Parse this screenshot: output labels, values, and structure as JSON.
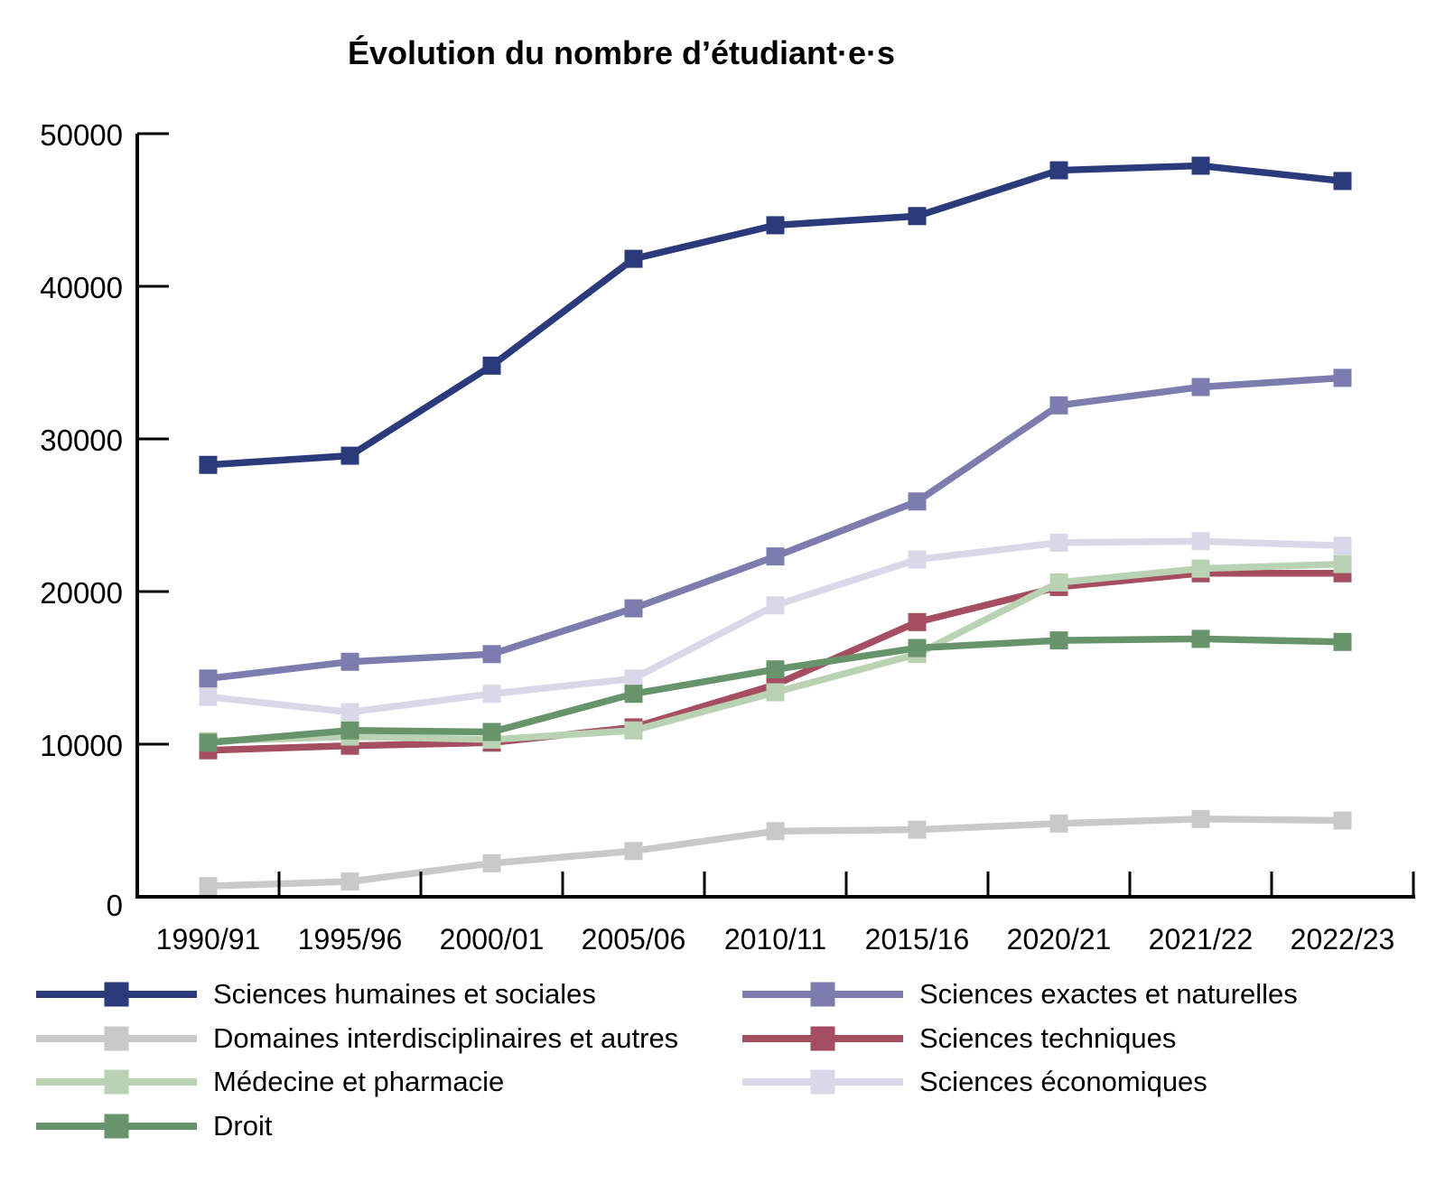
{
  "chart_data": {
    "type": "line",
    "title": "Évolution du nombre d’étudiant·e·s",
    "xlabel": "",
    "ylabel": "",
    "categories": [
      "1990/91",
      "1995/96",
      "2000/01",
      "2005/06",
      "2010/11",
      "2015/16",
      "2020/21",
      "2021/22",
      "2022/23"
    ],
    "ylim": [
      0,
      50000
    ],
    "yticks": [
      0,
      10000,
      20000,
      30000,
      40000,
      50000
    ],
    "grid": false,
    "marker": "square",
    "legend_position": "bottom",
    "axis_color": "#000000",
    "series": [
      {
        "name": "Sciences humaines et sociales",
        "color": "#2A3A7B",
        "z": 7,
        "values": [
          28300,
          28900,
          34800,
          41800,
          44000,
          44600,
          47600,
          47900,
          46900
        ]
      },
      {
        "name": "Sciences exactes et naturelles",
        "color": "#7C7CAE",
        "z": 6,
        "values": [
          14300,
          15400,
          15900,
          18900,
          22300,
          25900,
          32200,
          33400,
          34000
        ]
      },
      {
        "name": "Domaines interdisciplinaires et autres",
        "color": "#C9C9C9",
        "z": 2,
        "values": [
          700,
          1000,
          2200,
          3000,
          4300,
          4400,
          4800,
          5100,
          5000
        ]
      },
      {
        "name": "Sciences techniques",
        "color": "#A54D61",
        "z": 3,
        "values": [
          9600,
          9900,
          10100,
          11100,
          13900,
          18000,
          20300,
          21200,
          21200
        ]
      },
      {
        "name": "Médecine et pharmacie",
        "color": "#B9D2B3",
        "z": 4,
        "values": [
          10200,
          10500,
          10300,
          10900,
          13400,
          15900,
          20600,
          21500,
          21800
        ]
      },
      {
        "name": "Sciences économiques",
        "color": "#D8D8E9",
        "z": 1,
        "values": [
          13100,
          12100,
          13300,
          14300,
          19100,
          22100,
          23200,
          23300,
          23000
        ]
      },
      {
        "name": "Droit",
        "color": "#68946B",
        "z": 5,
        "values": [
          10100,
          10900,
          10800,
          13300,
          14900,
          16300,
          16800,
          16900,
          16700
        ]
      }
    ],
    "legend_columns": [
      [
        "Sciences humaines et sociales",
        "Domaines interdisciplinaires et autres",
        "Médecine et pharmacie",
        "Droit"
      ],
      [
        "Sciences exactes et naturelles",
        "Sciences techniques",
        "Sciences économiques"
      ]
    ]
  }
}
